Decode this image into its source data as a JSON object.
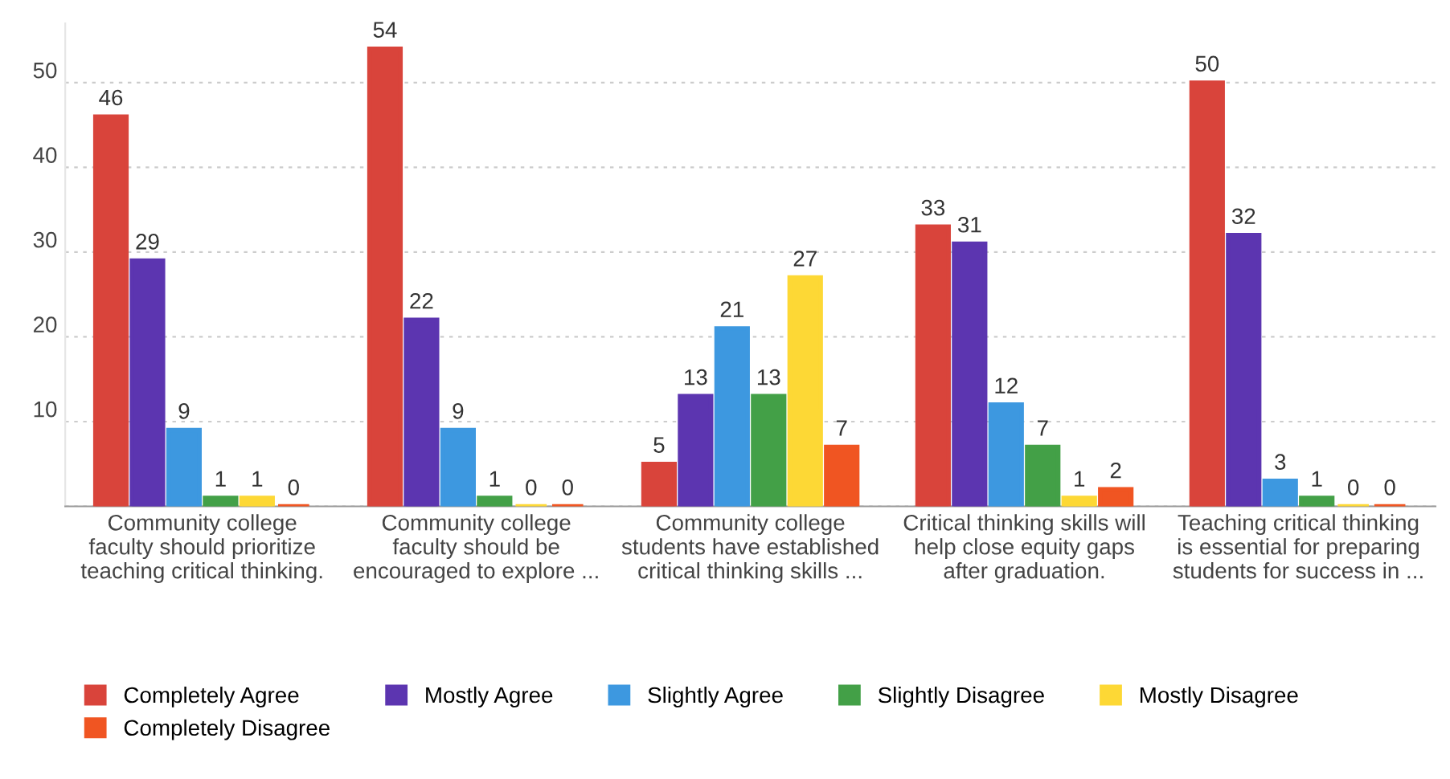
{
  "chart_data": {
    "type": "bar",
    "categories": [
      "Community college\nfaculty should prioritize\nteaching critical thinking.",
      "Community college\nfaculty should be\nencouraged to explore ...",
      "Community college\nstudents have established\ncritical thinking skills ...",
      "Critical thinking skills will\nhelp close equity gaps\nafter graduation.",
      "Teaching critical thinking\nis essential for preparing\nstudents for success in ..."
    ],
    "series": [
      {
        "name": "Completely Agree",
        "color": "#d9443b",
        "values": [
          46,
          54,
          5,
          33,
          50
        ]
      },
      {
        "name": "Mostly Agree",
        "color": "#5c35b0",
        "values": [
          29,
          22,
          13,
          31,
          32
        ]
      },
      {
        "name": "Slightly Agree",
        "color": "#3d98e0",
        "values": [
          9,
          9,
          21,
          12,
          3
        ]
      },
      {
        "name": "Slightly Disagree",
        "color": "#43a047",
        "values": [
          1,
          1,
          13,
          7,
          1
        ]
      },
      {
        "name": "Mostly Disagree",
        "color": "#fdd835",
        "values": [
          1,
          0,
          27,
          1,
          0
        ]
      },
      {
        "name": "Completely Disagree",
        "color": "#f05522",
        "values": [
          0,
          0,
          7,
          2,
          0
        ]
      }
    ],
    "ylim": [
      0,
      57
    ],
    "yticks": [
      {
        "value": 0,
        "label": null
      },
      10,
      20,
      30,
      40,
      50
    ],
    "grid": "y",
    "legend": "bottom",
    "data_labels": true
  }
}
